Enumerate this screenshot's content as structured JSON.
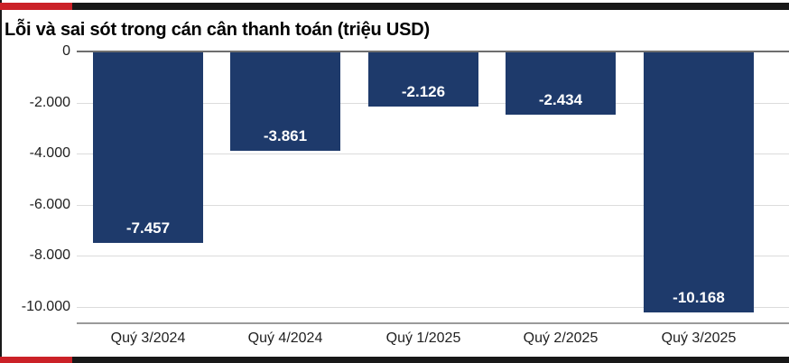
{
  "branding": {
    "accent_red": "#cb2127",
    "bar_black": "#181818"
  },
  "chart_data": {
    "type": "bar",
    "title": "Lỗi và sai sót trong cán cân thanh toán (triệu USD)",
    "unit": "triệu USD",
    "categories": [
      "Quý 3/2024",
      "Quý 4/2024",
      "Quý 1/2025",
      "Quý 2/2025",
      "Quý 3/2025"
    ],
    "values": [
      -7457,
      -3861,
      -2126,
      -2434,
      -10168
    ],
    "value_labels": [
      "-7.457",
      "-3.861",
      "-2.126",
      "-2.434",
      "-10.168"
    ],
    "y_ticks": [
      0,
      -2000,
      -4000,
      -6000,
      -8000,
      -10000
    ],
    "y_tick_labels": [
      "0",
      "-2.000",
      "-4.000",
      "-6.000",
      "-8.000",
      "-10.000"
    ],
    "ylim": [
      -10600,
      0
    ],
    "xlabel": "",
    "ylabel": "",
    "grid": true,
    "legend": false,
    "bar_color": "#1e3a6b",
    "value_label_color": "#ffffff",
    "axis_text_color": "#1f1f1f"
  }
}
